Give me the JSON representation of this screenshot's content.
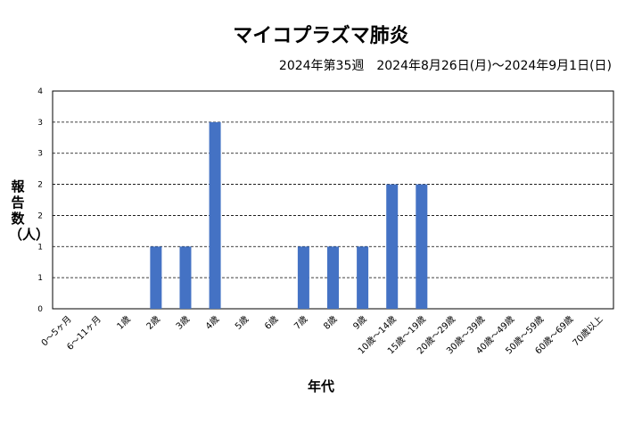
{
  "chart_data": {
    "type": "bar",
    "title": "マイコプラズマ肺炎",
    "subtitle": "2024年第35週　2024年8月26日(月)〜2024年9月1日(日)",
    "xlabel": "年代",
    "ylabel": "報告数（人）",
    "categories": [
      "0〜5ヶ月",
      "6〜11ヶ月",
      "1歳",
      "2歳",
      "3歳",
      "4歳",
      "5歳",
      "6歳",
      "7歳",
      "8歳",
      "9歳",
      "10歳〜14歳",
      "15歳〜19歳",
      "20歳〜29歳",
      "30歳〜39歳",
      "40歳〜49歳",
      "50歳〜59歳",
      "60歳〜69歳",
      "70歳以上"
    ],
    "values": [
      0,
      0,
      0,
      1,
      1,
      3,
      0,
      0,
      1,
      1,
      1,
      2,
      2,
      0,
      0,
      0,
      0,
      0,
      0
    ],
    "y_tick_labels": [
      "0",
      "1",
      "1",
      "2",
      "2",
      "3",
      "3",
      "4"
    ],
    "ylim": [
      0,
      3.5
    ],
    "grid": true,
    "colors": {
      "bar": "#4472C4",
      "grid": "#000000"
    }
  }
}
